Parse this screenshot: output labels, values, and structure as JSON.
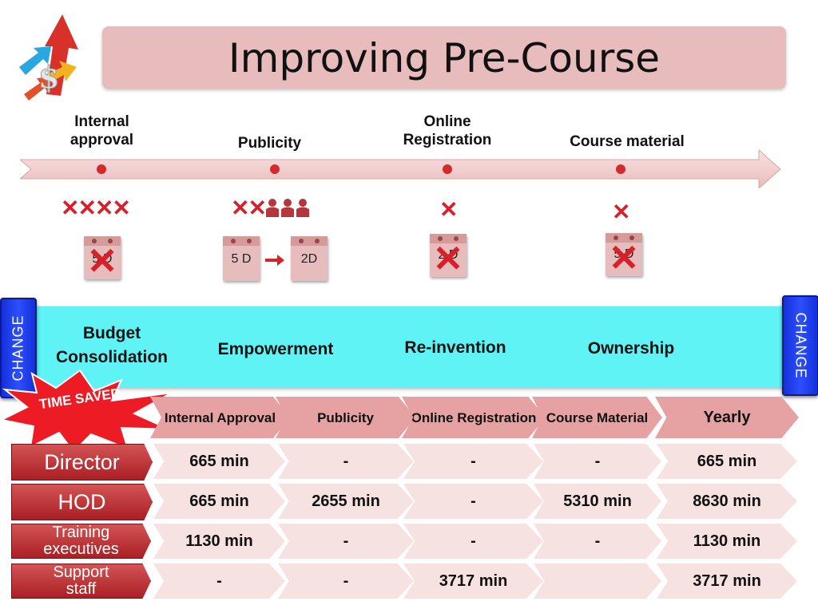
{
  "title": "Improving Pre-Course",
  "timeline": {
    "stages": [
      {
        "label": "Internal approval"
      },
      {
        "label": "Publicity"
      },
      {
        "label": "Online Registration"
      },
      {
        "label": "Course material"
      }
    ]
  },
  "calendars": {
    "internal": "5 D",
    "publicity_before": "5 D",
    "publicity_after": "2D",
    "online": "2 D",
    "course": "5 D"
  },
  "band": {
    "items": [
      "Budget Consolidation",
      "Empowerment",
      "Re-invention",
      "Ownership"
    ],
    "change_label": "CHANGE"
  },
  "time_saved": "TIME SAVED",
  "table": {
    "headers": [
      "Internal Approval",
      "Publicity",
      "Online Registration",
      "Course Material",
      "Yearly"
    ],
    "rows": [
      {
        "label": "Director",
        "cells": [
          "665 min",
          "-",
          "-",
          "-",
          "665 min"
        ]
      },
      {
        "label": "HOD",
        "cells": [
          "665 min",
          "2655 min",
          "-",
          "5310 min",
          "8630 min"
        ]
      },
      {
        "label": "Training executives",
        "cells": [
          "1130 min",
          "-",
          "-",
          "-",
          "1130 min"
        ]
      },
      {
        "label": "Support staff",
        "cells": [
          "-",
          "-",
          "3717 min",
          "",
          "3717 min"
        ]
      }
    ]
  },
  "colors": {
    "title_bg": "#e8bcbc",
    "band": "#5ff3f6",
    "change": "#1f3cf0",
    "row_label": "#b52a2f",
    "cross": "#d8202a"
  }
}
